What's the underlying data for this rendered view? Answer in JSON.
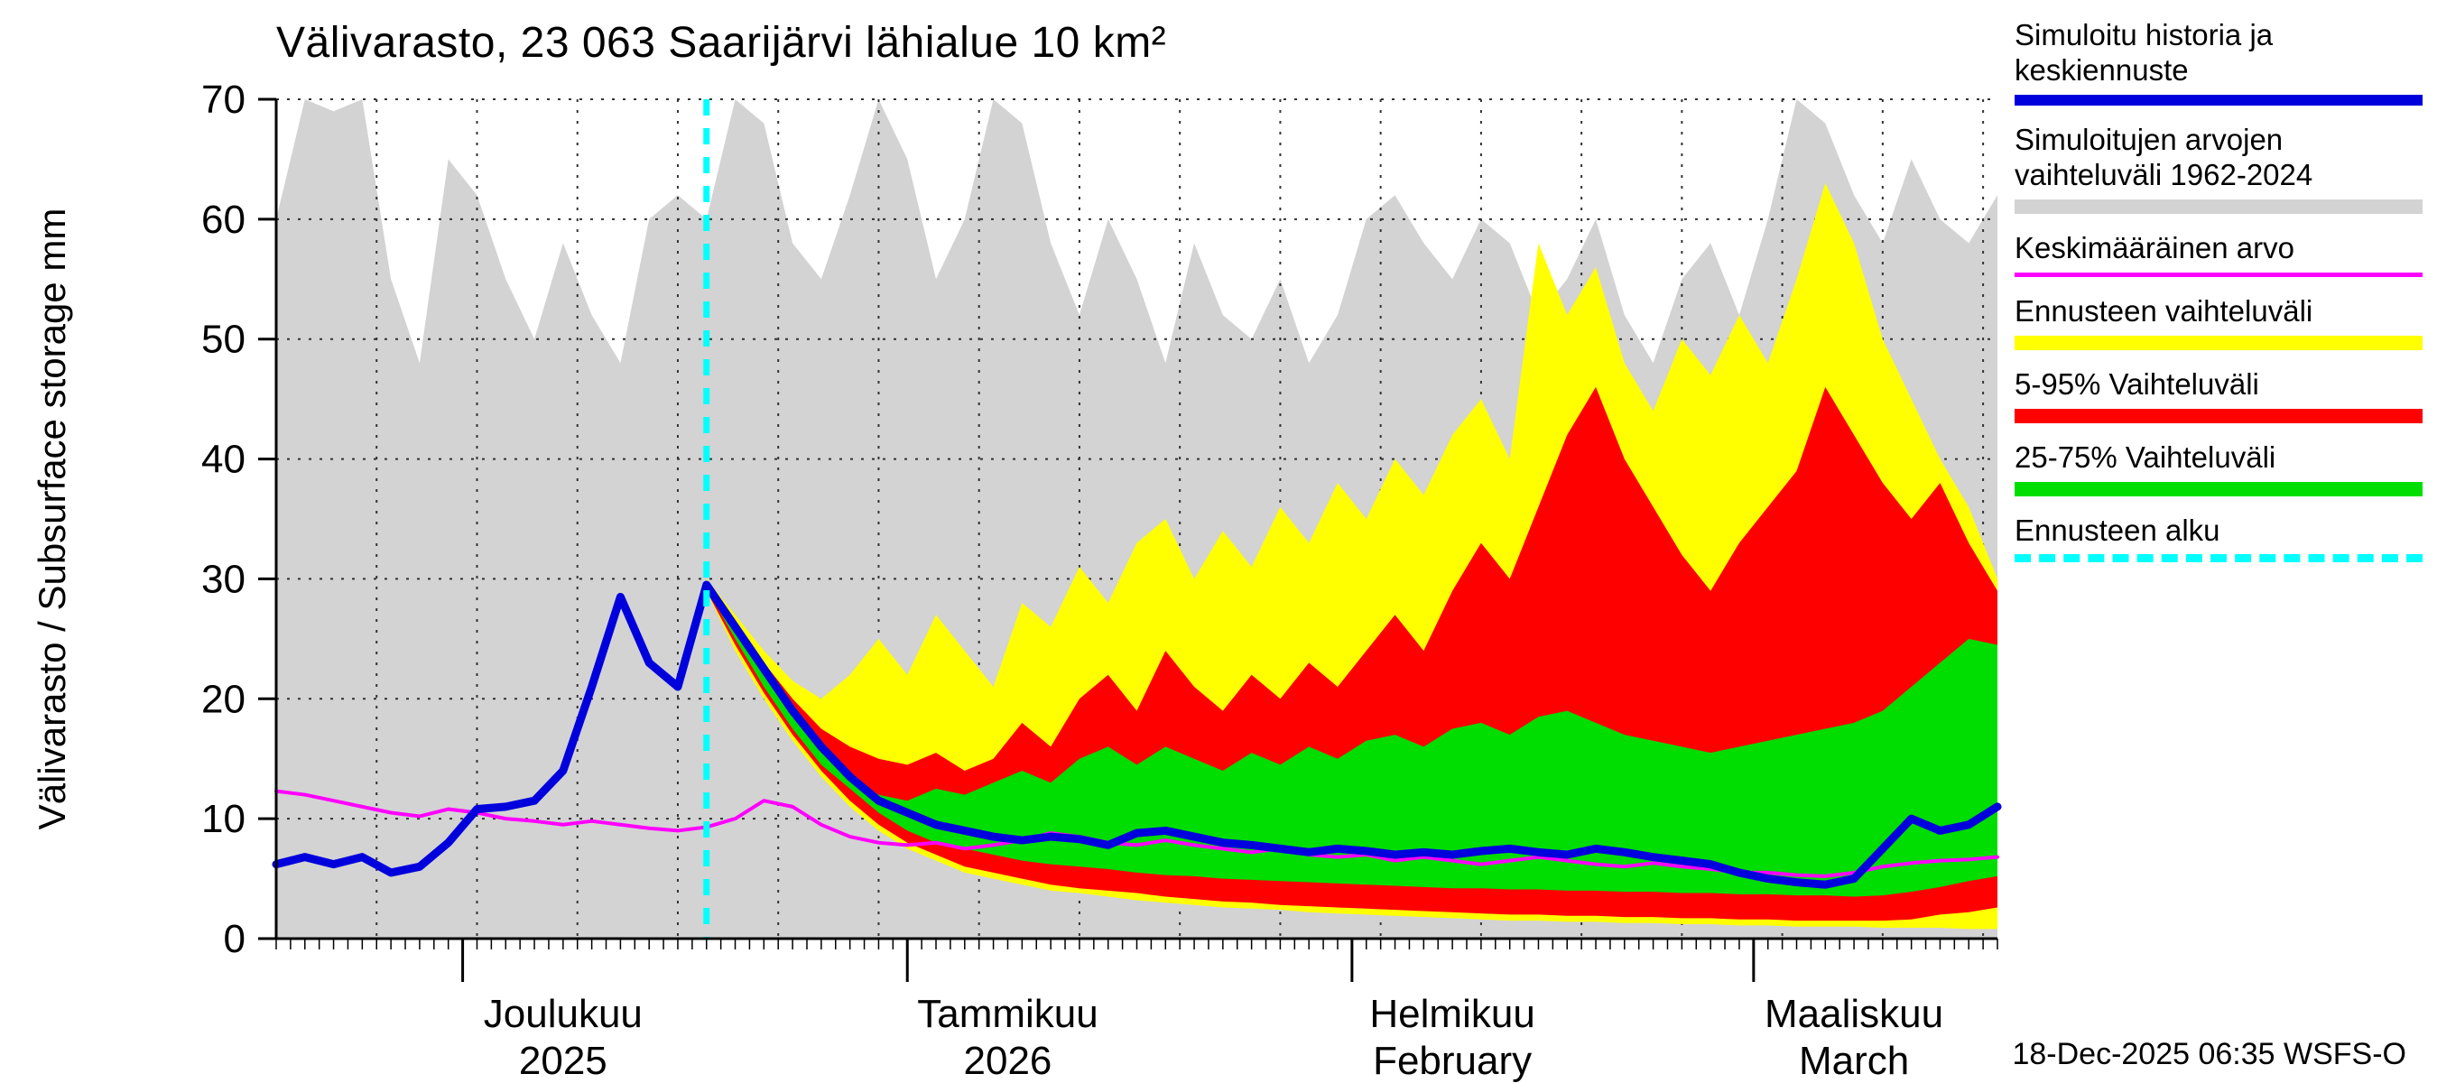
{
  "page": {
    "title": "Välivarasto, 23 063 Saarijärvi lähialue 10 km²",
    "ylabel": "Välivarasto / Subsurface storage mm",
    "timestamp": "18-Dec-2025 06:35 WSFS-O"
  },
  "colors": {
    "history_line": "#0000dd",
    "sim_range": "#d3d3d3",
    "mean_value": "#ff00ff",
    "forecast_range": "#ffff00",
    "range_5_95": "#ff0000",
    "range_25_75": "#00dd00",
    "forecast_start": "#00ffff",
    "grid": "#333333",
    "axis": "#000000"
  },
  "legend": [
    {
      "label": "Simuloitu historia ja keskiennuste",
      "color": "#0000dd",
      "style": "thick-line"
    },
    {
      "label": "Simuloitujen arvojen vaihteluväli 1962-2024",
      "color": "#d3d3d3",
      "style": "band"
    },
    {
      "label": "Keskimääräinen arvo",
      "color": "#ff00ff",
      "style": "line"
    },
    {
      "label": "Ennusteen vaihteluväli",
      "color": "#ffff00",
      "style": "band"
    },
    {
      "label": "5-95% Vaihteluväli",
      "color": "#ff0000",
      "style": "band"
    },
    {
      "label": "25-75% Vaihteluväli",
      "color": "#00dd00",
      "style": "band"
    },
    {
      "label": "Ennusteen alku",
      "color": "#00ffff",
      "style": "dashed-line"
    }
  ],
  "chart_data": {
    "type": "area",
    "title": "Välivarasto, 23 063 Saarijärvi lähialue 10 km²",
    "ylabel": "Välivarasto / Subsurface storage mm",
    "ylim": [
      0,
      70
    ],
    "yticks": [
      0,
      10,
      20,
      30,
      40,
      50,
      60,
      70
    ],
    "x_unit": "days from 18-Nov-2025",
    "x_span_days": 120,
    "forecast_start_day": 30,
    "vgrid_interval_days": 7,
    "month_ticks": [
      {
        "day": 13,
        "label": "Joulukuu",
        "sublabel": "2025",
        "label_day": 20
      },
      {
        "day": 44,
        "label": "Tammikuu",
        "sublabel": "2026",
        "label_day": 51
      },
      {
        "day": 75,
        "label": "Helmikuu",
        "sublabel": "February",
        "label_day": 82
      },
      {
        "day": 103,
        "label": "Maaliskuu",
        "sublabel": "March",
        "label_day": 110
      }
    ],
    "x_history": [
      0,
      2,
      4,
      6,
      8,
      10,
      12,
      14,
      16,
      18,
      20,
      22,
      24,
      26,
      28,
      30,
      32,
      34,
      36,
      38,
      40,
      42,
      44,
      46,
      48,
      50,
      52,
      54,
      56,
      58,
      60,
      62,
      64,
      66,
      68,
      70,
      72,
      74,
      76,
      78,
      80,
      82,
      84,
      86,
      88,
      90,
      92,
      94,
      96,
      98,
      100,
      102,
      104,
      106,
      108,
      110,
      112,
      114,
      116,
      118,
      120
    ],
    "x_forecast": [
      30,
      32,
      34,
      36,
      38,
      40,
      42,
      44,
      46,
      48,
      50,
      52,
      54,
      56,
      58,
      60,
      62,
      64,
      66,
      68,
      70,
      72,
      74,
      76,
      78,
      80,
      82,
      84,
      86,
      88,
      90,
      92,
      94,
      96,
      98,
      100,
      102,
      104,
      106,
      108,
      110,
      112,
      114,
      116,
      118,
      120
    ],
    "series": {
      "sim_range_max_1962_2024": [
        60,
        70,
        69,
        70,
        55,
        48,
        65,
        62,
        55,
        50,
        58,
        52,
        48,
        60,
        62,
        60,
        70,
        68,
        58,
        55,
        62,
        70,
        65,
        55,
        60,
        70,
        68,
        58,
        52,
        60,
        55,
        48,
        58,
        52,
        50,
        55,
        48,
        52,
        60,
        62,
        58,
        55,
        60,
        58,
        52,
        55,
        60,
        52,
        48,
        55,
        58,
        52,
        60,
        70,
        68,
        62,
        58,
        65,
        60,
        58,
        62
      ],
      "sim_range_min_1962_2024_constant": 0,
      "history_and_mean_forecast": [
        6.2,
        6.8,
        6.2,
        6.8,
        5.5,
        6,
        8,
        10.8,
        11,
        11.5,
        14,
        21,
        28.5,
        23,
        21,
        29.5,
        26,
        22.5,
        19,
        16,
        13.5,
        11.5,
        10.5,
        9.5,
        9,
        8.5,
        8.2,
        8.5,
        8.3,
        7.8,
        8.8,
        9,
        8.5,
        8,
        7.8,
        7.5,
        7.2,
        7.5,
        7.3,
        7,
        7.2,
        7,
        7.3,
        7.5,
        7.2,
        7,
        7.5,
        7.2,
        6.8,
        6.5,
        6.2,
        5.5,
        5,
        4.7,
        4.5,
        5,
        7.5,
        10,
        9,
        9.5,
        11
      ],
      "long_term_mean": [
        12.3,
        12,
        11.5,
        11,
        10.5,
        10.2,
        10.8,
        10.5,
        10,
        9.8,
        9.5,
        9.8,
        9.5,
        9.2,
        9,
        9.3,
        10,
        11.5,
        11,
        9.5,
        8.5,
        8,
        7.8,
        8,
        7.5,
        7.8,
        8.2,
        8.8,
        8.5,
        8,
        7.8,
        8.2,
        7.8,
        7.5,
        7.2,
        7.5,
        7,
        6.8,
        7,
        6.5,
        6.8,
        6.5,
        6.2,
        6.5,
        6.8,
        6.5,
        6.2,
        6,
        6.3,
        6,
        5.8,
        5.5,
        5.5,
        5.3,
        5.2,
        5.5,
        6,
        6.3,
        6.5,
        6.6,
        6.8
      ],
      "forecast_range_max": [
        30,
        27,
        24,
        21.5,
        20,
        22,
        25,
        22,
        27,
        24,
        21,
        28,
        26,
        31,
        28,
        33,
        35,
        30,
        34,
        31,
        36,
        33,
        38,
        35,
        40,
        37,
        42,
        45,
        40,
        58,
        52,
        56,
        48,
        44,
        50,
        47,
        52,
        48,
        55,
        63,
        58,
        50,
        45,
        40,
        36,
        30
      ],
      "forecast_range_min": [
        29,
        24,
        20,
        16.5,
        13.5,
        11,
        9,
        7.5,
        6.5,
        5.5,
        5,
        4.5,
        4,
        3.8,
        3.5,
        3.2,
        3,
        2.8,
        2.6,
        2.5,
        2.4,
        2.2,
        2.1,
        2,
        1.9,
        1.8,
        1.7,
        1.6,
        1.5,
        1.5,
        1.4,
        1.4,
        1.3,
        1.3,
        1.2,
        1.2,
        1.1,
        1.1,
        1,
        1,
        1,
        0.9,
        0.9,
        0.9,
        0.8,
        0.8
      ],
      "p5_95_max": [
        29.8,
        26,
        23,
        20,
        17.5,
        16,
        15,
        14.5,
        15.5,
        14,
        15,
        18,
        16,
        20,
        22,
        19,
        24,
        21,
        19,
        22,
        20,
        23,
        21,
        24,
        27,
        24,
        29,
        33,
        30,
        36,
        42,
        46,
        40,
        36,
        32,
        29,
        33,
        36,
        39,
        46,
        42,
        38,
        35,
        38,
        33,
        29
      ],
      "p5_95_min": [
        29,
        24.5,
        20.5,
        17,
        14,
        11.5,
        9.5,
        8,
        7,
        6,
        5.5,
        5,
        4.5,
        4.2,
        4,
        3.8,
        3.5,
        3.3,
        3.1,
        3,
        2.8,
        2.7,
        2.6,
        2.5,
        2.4,
        2.3,
        2.2,
        2.1,
        2,
        2,
        1.9,
        1.9,
        1.8,
        1.8,
        1.7,
        1.7,
        1.6,
        1.6,
        1.5,
        1.5,
        1.5,
        1.5,
        1.6,
        2,
        2.2,
        2.6
      ],
      "p25_75_max": [
        29.5,
        25.5,
        22,
        18.5,
        15.5,
        13.5,
        12,
        11.5,
        12.5,
        12,
        13,
        14,
        13,
        15,
        16,
        14.5,
        16,
        15,
        14,
        15.5,
        14.5,
        16,
        15,
        16.5,
        17,
        16,
        17.5,
        18,
        17,
        18.5,
        19,
        18,
        17,
        16.5,
        16,
        15.5,
        16,
        16.5,
        17,
        17.5,
        18,
        19,
        21,
        23,
        25,
        24.5
      ],
      "p25_75_min": [
        29.2,
        25,
        21,
        17.5,
        14.5,
        12.5,
        10.5,
        9,
        8,
        7.5,
        7,
        6.5,
        6.2,
        6,
        5.8,
        5.5,
        5.3,
        5.2,
        5,
        4.9,
        4.8,
        4.7,
        4.6,
        4.5,
        4.4,
        4.3,
        4.2,
        4.2,
        4.1,
        4.1,
        4,
        4,
        3.9,
        3.9,
        3.8,
        3.8,
        3.7,
        3.7,
        3.6,
        3.6,
        3.5,
        3.6,
        3.9,
        4.3,
        4.8,
        5.2
      ]
    }
  }
}
